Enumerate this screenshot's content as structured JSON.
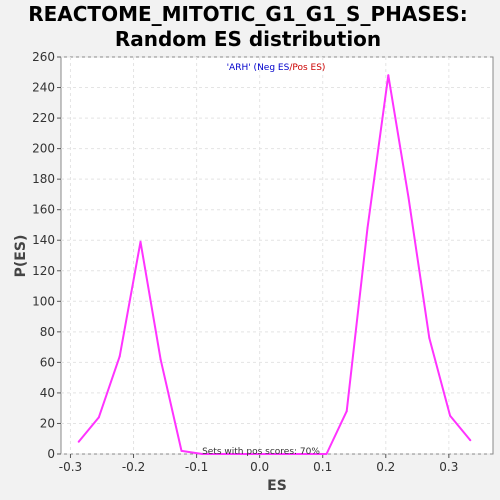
{
  "chart_data": {
    "type": "line",
    "title": "REACTOME_MITOTIC_G1_G1_S_PHASES:",
    "subtitle": "Random ES distribution",
    "xlabel": "ES",
    "ylabel": "P(ES)",
    "xlim": [
      -0.315,
      0.37
    ],
    "ylim": [
      0,
      260
    ],
    "xticks": [
      "-0.3",
      "-0.2",
      "-0.1",
      "0.0",
      "0.1",
      "0.2",
      "0.3"
    ],
    "yticks": [
      "0",
      "20",
      "40",
      "60",
      "80",
      "100",
      "120",
      "140",
      "160",
      "180",
      "200",
      "220",
      "240",
      "260"
    ],
    "grid": true,
    "legend": {
      "position": "top-center",
      "prefix": "'ARH' (",
      "neg": "Neg ES",
      "separator": "/",
      "pos": "Pos ES",
      "suffix": ")"
    },
    "annotation": "Sets with pos scores: 70%",
    "series": [
      {
        "color": "#ff33ff",
        "x": [
          -0.287,
          -0.255,
          -0.222,
          -0.189,
          -0.157,
          -0.124,
          -0.091,
          -0.058,
          -0.025,
          0.007,
          0.04,
          0.073,
          0.106,
          0.138,
          0.171,
          0.204,
          0.236,
          0.269,
          0.302,
          0.334
        ],
        "y": [
          8,
          24,
          64,
          139,
          62,
          2,
          0,
          0,
          0,
          0,
          0,
          0,
          0,
          28,
          148,
          248,
          168,
          76,
          25,
          9
        ]
      }
    ]
  }
}
